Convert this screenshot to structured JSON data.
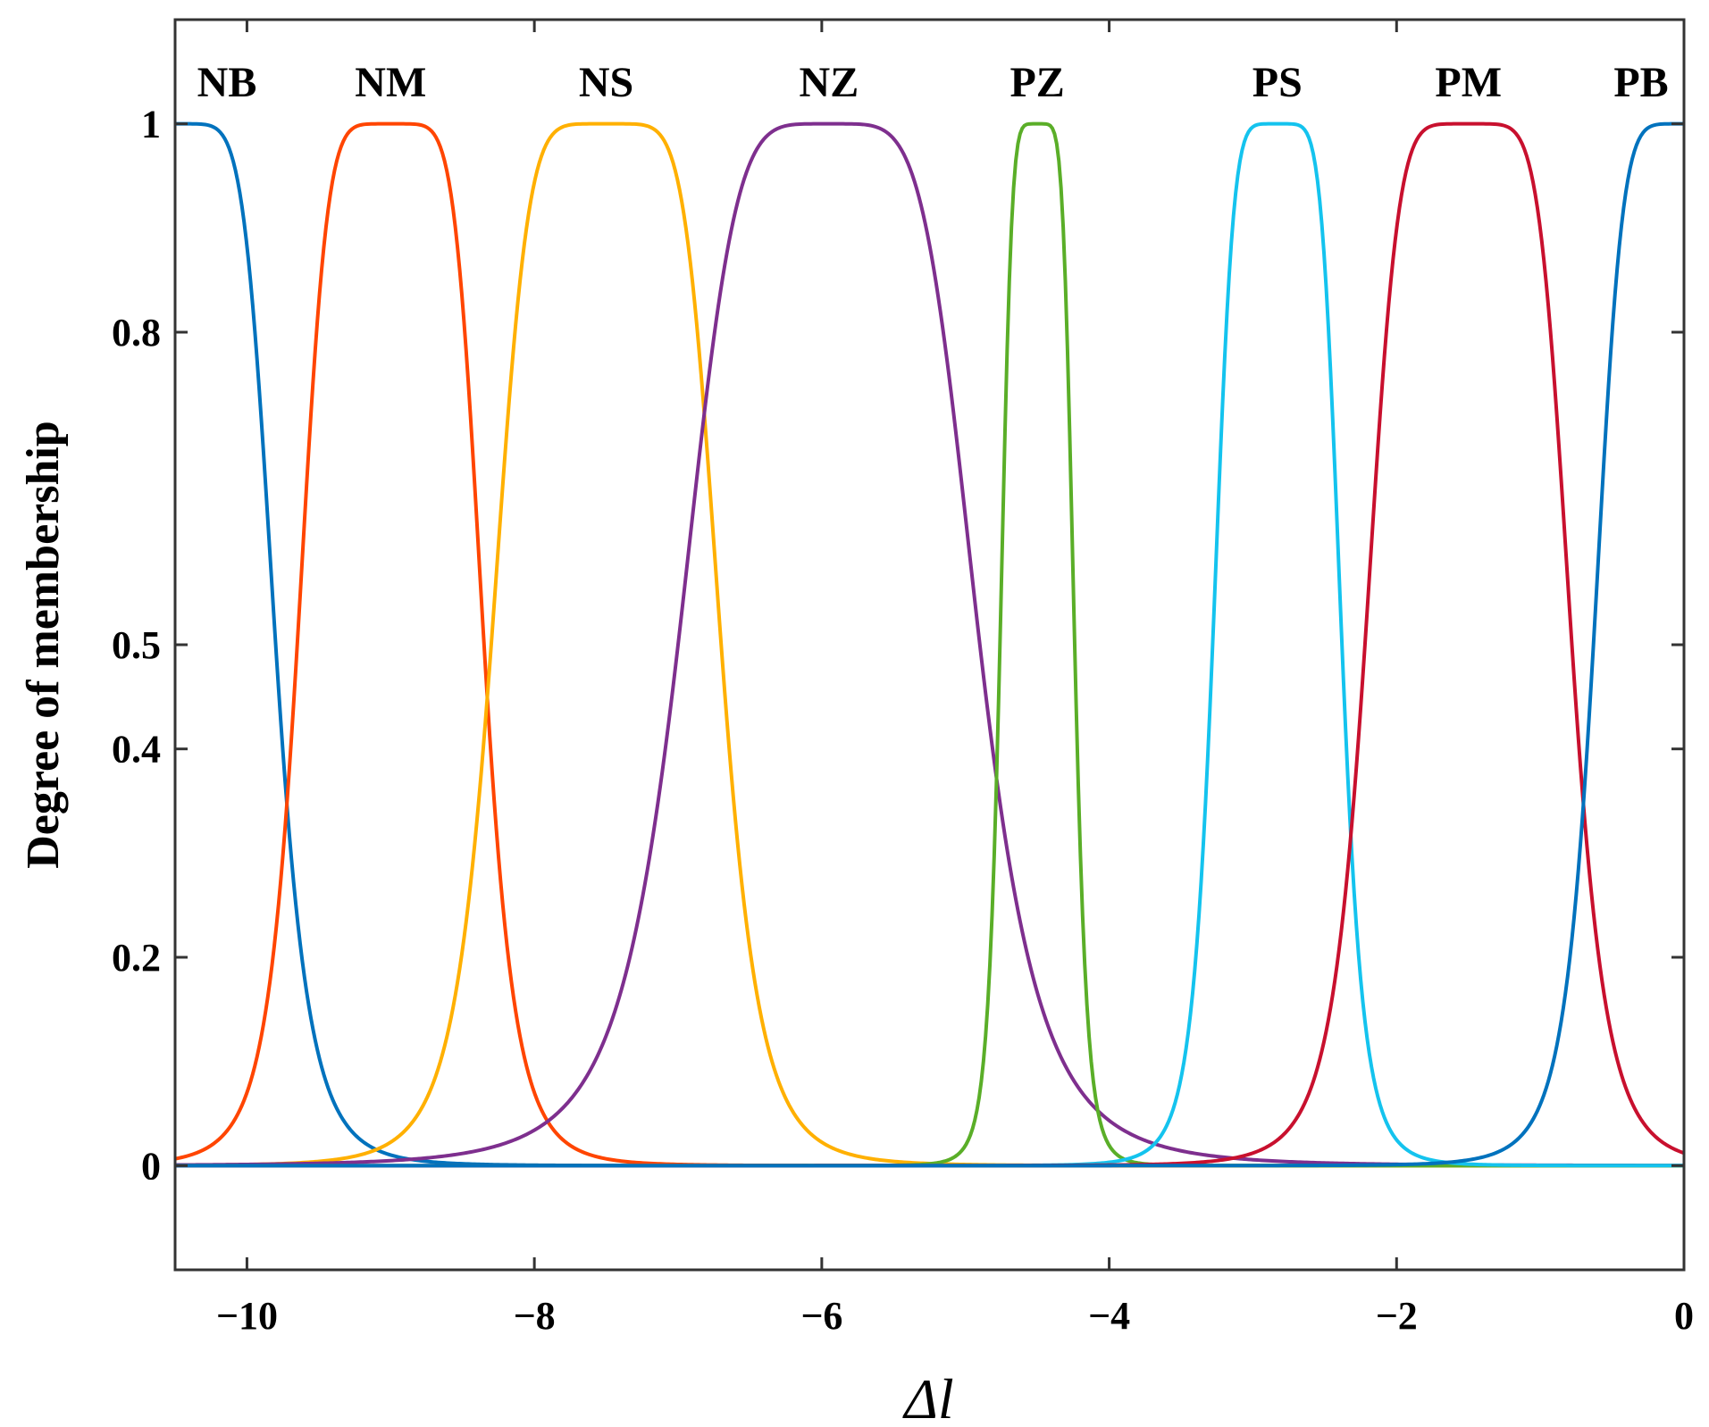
{
  "chart_data": {
    "type": "line",
    "title": "",
    "xlabel": "Δl",
    "ylabel": "Degree of membership",
    "xlim": [
      -10.5,
      0
    ],
    "ylim": [
      -0.1,
      1.1
    ],
    "xticks": [
      -10,
      -8,
      -6,
      -4,
      -2,
      0
    ],
    "xtick_labels": [
      "−10",
      "−8",
      "−6",
      "−4",
      "−2",
      "0"
    ],
    "yticks": [
      0,
      0.2,
      0.4,
      0.5,
      0.8,
      1
    ],
    "ytick_labels": [
      "0",
      "0.2",
      "0.4",
      "0.5",
      "0.8",
      "1"
    ],
    "grid": false,
    "series": [
      {
        "name": "NB",
        "color": "#0072BD",
        "center": -10.5,
        "half_width": 0.7,
        "slope": 3
      },
      {
        "name": "NM",
        "color": "#FF4500",
        "center": -9.0,
        "half_width": 0.65,
        "slope": 3
      },
      {
        "name": "NS",
        "color": "#FFB000",
        "center": -7.5,
        "half_width": 0.8,
        "slope": 3
      },
      {
        "name": "NZ",
        "color": "#7E2F8E",
        "center": -5.95,
        "half_width": 1.05,
        "slope": 2.5
      },
      {
        "name": "PZ",
        "color": "#5AAE28",
        "center": -4.5,
        "half_width": 0.26,
        "slope": 3
      },
      {
        "name": "PS",
        "color": "#14C3EE",
        "center": -2.83,
        "half_width": 0.45,
        "slope": 3
      },
      {
        "name": "PM",
        "color": "#C8102E",
        "center": -1.5,
        "half_width": 0.72,
        "slope": 3
      },
      {
        "name": "PB",
        "color": "#0072BD",
        "center": 0.0,
        "half_width": 0.63,
        "slope": 3
      }
    ]
  }
}
